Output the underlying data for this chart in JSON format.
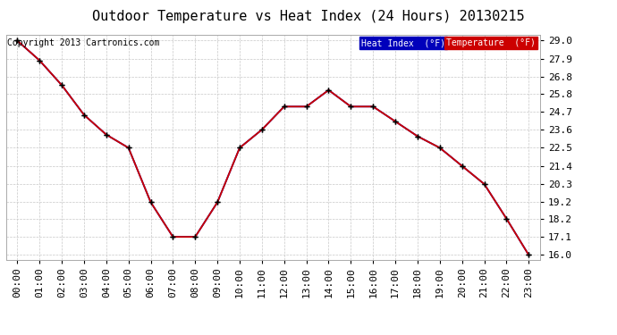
{
  "title": "Outdoor Temperature vs Heat Index (24 Hours) 20130215",
  "copyright": "Copyright 2013 Cartronics.com",
  "hours": [
    "00:00",
    "01:00",
    "02:00",
    "03:00",
    "04:00",
    "05:00",
    "06:00",
    "07:00",
    "08:00",
    "09:00",
    "10:00",
    "11:00",
    "12:00",
    "13:00",
    "14:00",
    "15:00",
    "16:00",
    "17:00",
    "18:00",
    "19:00",
    "20:00",
    "21:00",
    "22:00",
    "23:00"
  ],
  "temperature": [
    29.0,
    27.8,
    26.3,
    24.5,
    23.3,
    22.5,
    19.2,
    17.1,
    17.1,
    19.2,
    22.5,
    23.6,
    25.0,
    25.0,
    26.0,
    25.0,
    25.0,
    24.1,
    23.2,
    22.5,
    21.4,
    20.3,
    18.2,
    16.0
  ],
  "heat_index": [
    29.0,
    27.8,
    26.3,
    24.5,
    23.3,
    22.5,
    19.2,
    17.1,
    17.1,
    19.2,
    22.5,
    23.6,
    25.0,
    25.0,
    26.0,
    25.0,
    25.0,
    24.1,
    23.2,
    22.5,
    21.4,
    20.3,
    18.2,
    16.0
  ],
  "temp_color": "#cc0000",
  "heat_index_color": "#0000bb",
  "ylim_min": 15.72,
  "ylim_max": 29.33,
  "yticks": [
    16.0,
    17.1,
    18.2,
    19.2,
    20.3,
    21.4,
    22.5,
    23.6,
    24.7,
    25.8,
    26.8,
    27.9,
    29.0
  ],
  "background_color": "#ffffff",
  "grid_color": "#c8c8c8",
  "title_fontsize": 11,
  "copyright_fontsize": 7,
  "tick_fontsize": 8,
  "legend_heat_bg": "#0000bb",
  "legend_temp_bg": "#cc0000",
  "legend_text": [
    "Heat Index  (°F)",
    "Temperature  (°F)"
  ]
}
